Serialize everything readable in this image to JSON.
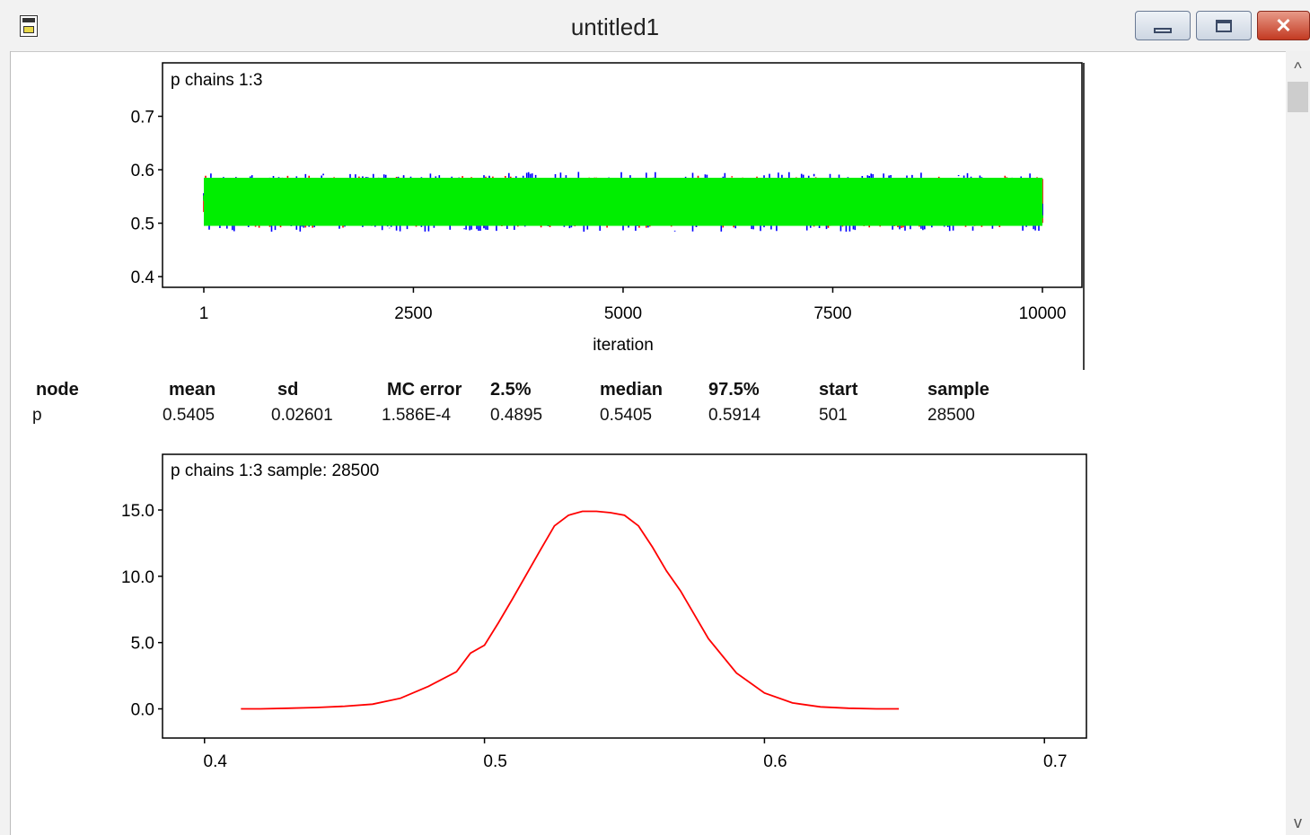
{
  "window": {
    "title": "untitled1",
    "icons": {
      "app": "document-app-icon",
      "minimize": "minimize-icon",
      "maximize": "maximize-icon",
      "close": "close-icon"
    },
    "close_glyph": "✕"
  },
  "scrollbar": {
    "up_glyph": "^",
    "down_glyph": "v"
  },
  "chart_data": [
    {
      "type": "line",
      "title": "p chains 1:3",
      "xlabel": "iteration",
      "ylabel": "",
      "xlim": [
        1,
        10000
      ],
      "ylim": [
        0.38,
        0.8
      ],
      "x_ticks": [
        "1",
        "2500",
        "5000",
        "7500",
        "10000"
      ],
      "y_ticks": [
        "0.4",
        "0.5",
        "0.6",
        "0.7"
      ],
      "series": [
        {
          "color": "#ff0000",
          "mean": 0.5405,
          "band": [
            0.47,
            0.61
          ]
        },
        {
          "color": "#0000ff",
          "mean": 0.5405,
          "band": [
            0.46,
            0.62
          ]
        },
        {
          "color": "#00ee00",
          "mean": 0.5405,
          "band": [
            0.495,
            0.585
          ]
        }
      ]
    },
    {
      "type": "line",
      "title": "p chains 1:3 sample: 28500",
      "xlabel": "",
      "ylabel": "",
      "xlim": [
        0.385,
        0.715
      ],
      "ylim": [
        -2.2,
        19.2
      ],
      "x_ticks": [
        "0.4",
        "0.5",
        "0.6",
        "0.7"
      ],
      "y_ticks": [
        "0.0",
        "5.0",
        "10.0",
        "15.0"
      ],
      "series": [
        {
          "color": "#ff0000",
          "x": [
            0.413,
            0.42,
            0.43,
            0.44,
            0.45,
            0.46,
            0.47,
            0.48,
            0.49,
            0.495,
            0.5,
            0.505,
            0.51,
            0.52,
            0.525,
            0.53,
            0.535,
            0.54,
            0.545,
            0.55,
            0.555,
            0.56,
            0.565,
            0.57,
            0.58,
            0.59,
            0.6,
            0.61,
            0.62,
            0.63,
            0.64,
            0.648
          ],
          "y": [
            0.0,
            0.0,
            0.05,
            0.1,
            0.2,
            0.35,
            0.8,
            1.7,
            2.8,
            4.2,
            4.8,
            6.5,
            8.3,
            12.0,
            13.8,
            14.6,
            14.9,
            14.9,
            14.8,
            14.6,
            13.8,
            12.2,
            10.4,
            8.9,
            5.3,
            2.7,
            1.2,
            0.45,
            0.15,
            0.05,
            0.0,
            0.0
          ]
        }
      ]
    }
  ],
  "stats": {
    "headers": [
      "node",
      "mean",
      "sd",
      "MC error",
      "2.5%",
      "median",
      "97.5%",
      "start",
      "sample"
    ],
    "row": [
      "p",
      "0.5405",
      "0.02601",
      "1.586E-4",
      "0.4895",
      "0.5405",
      "0.5914",
      "501",
      "28500"
    ]
  }
}
